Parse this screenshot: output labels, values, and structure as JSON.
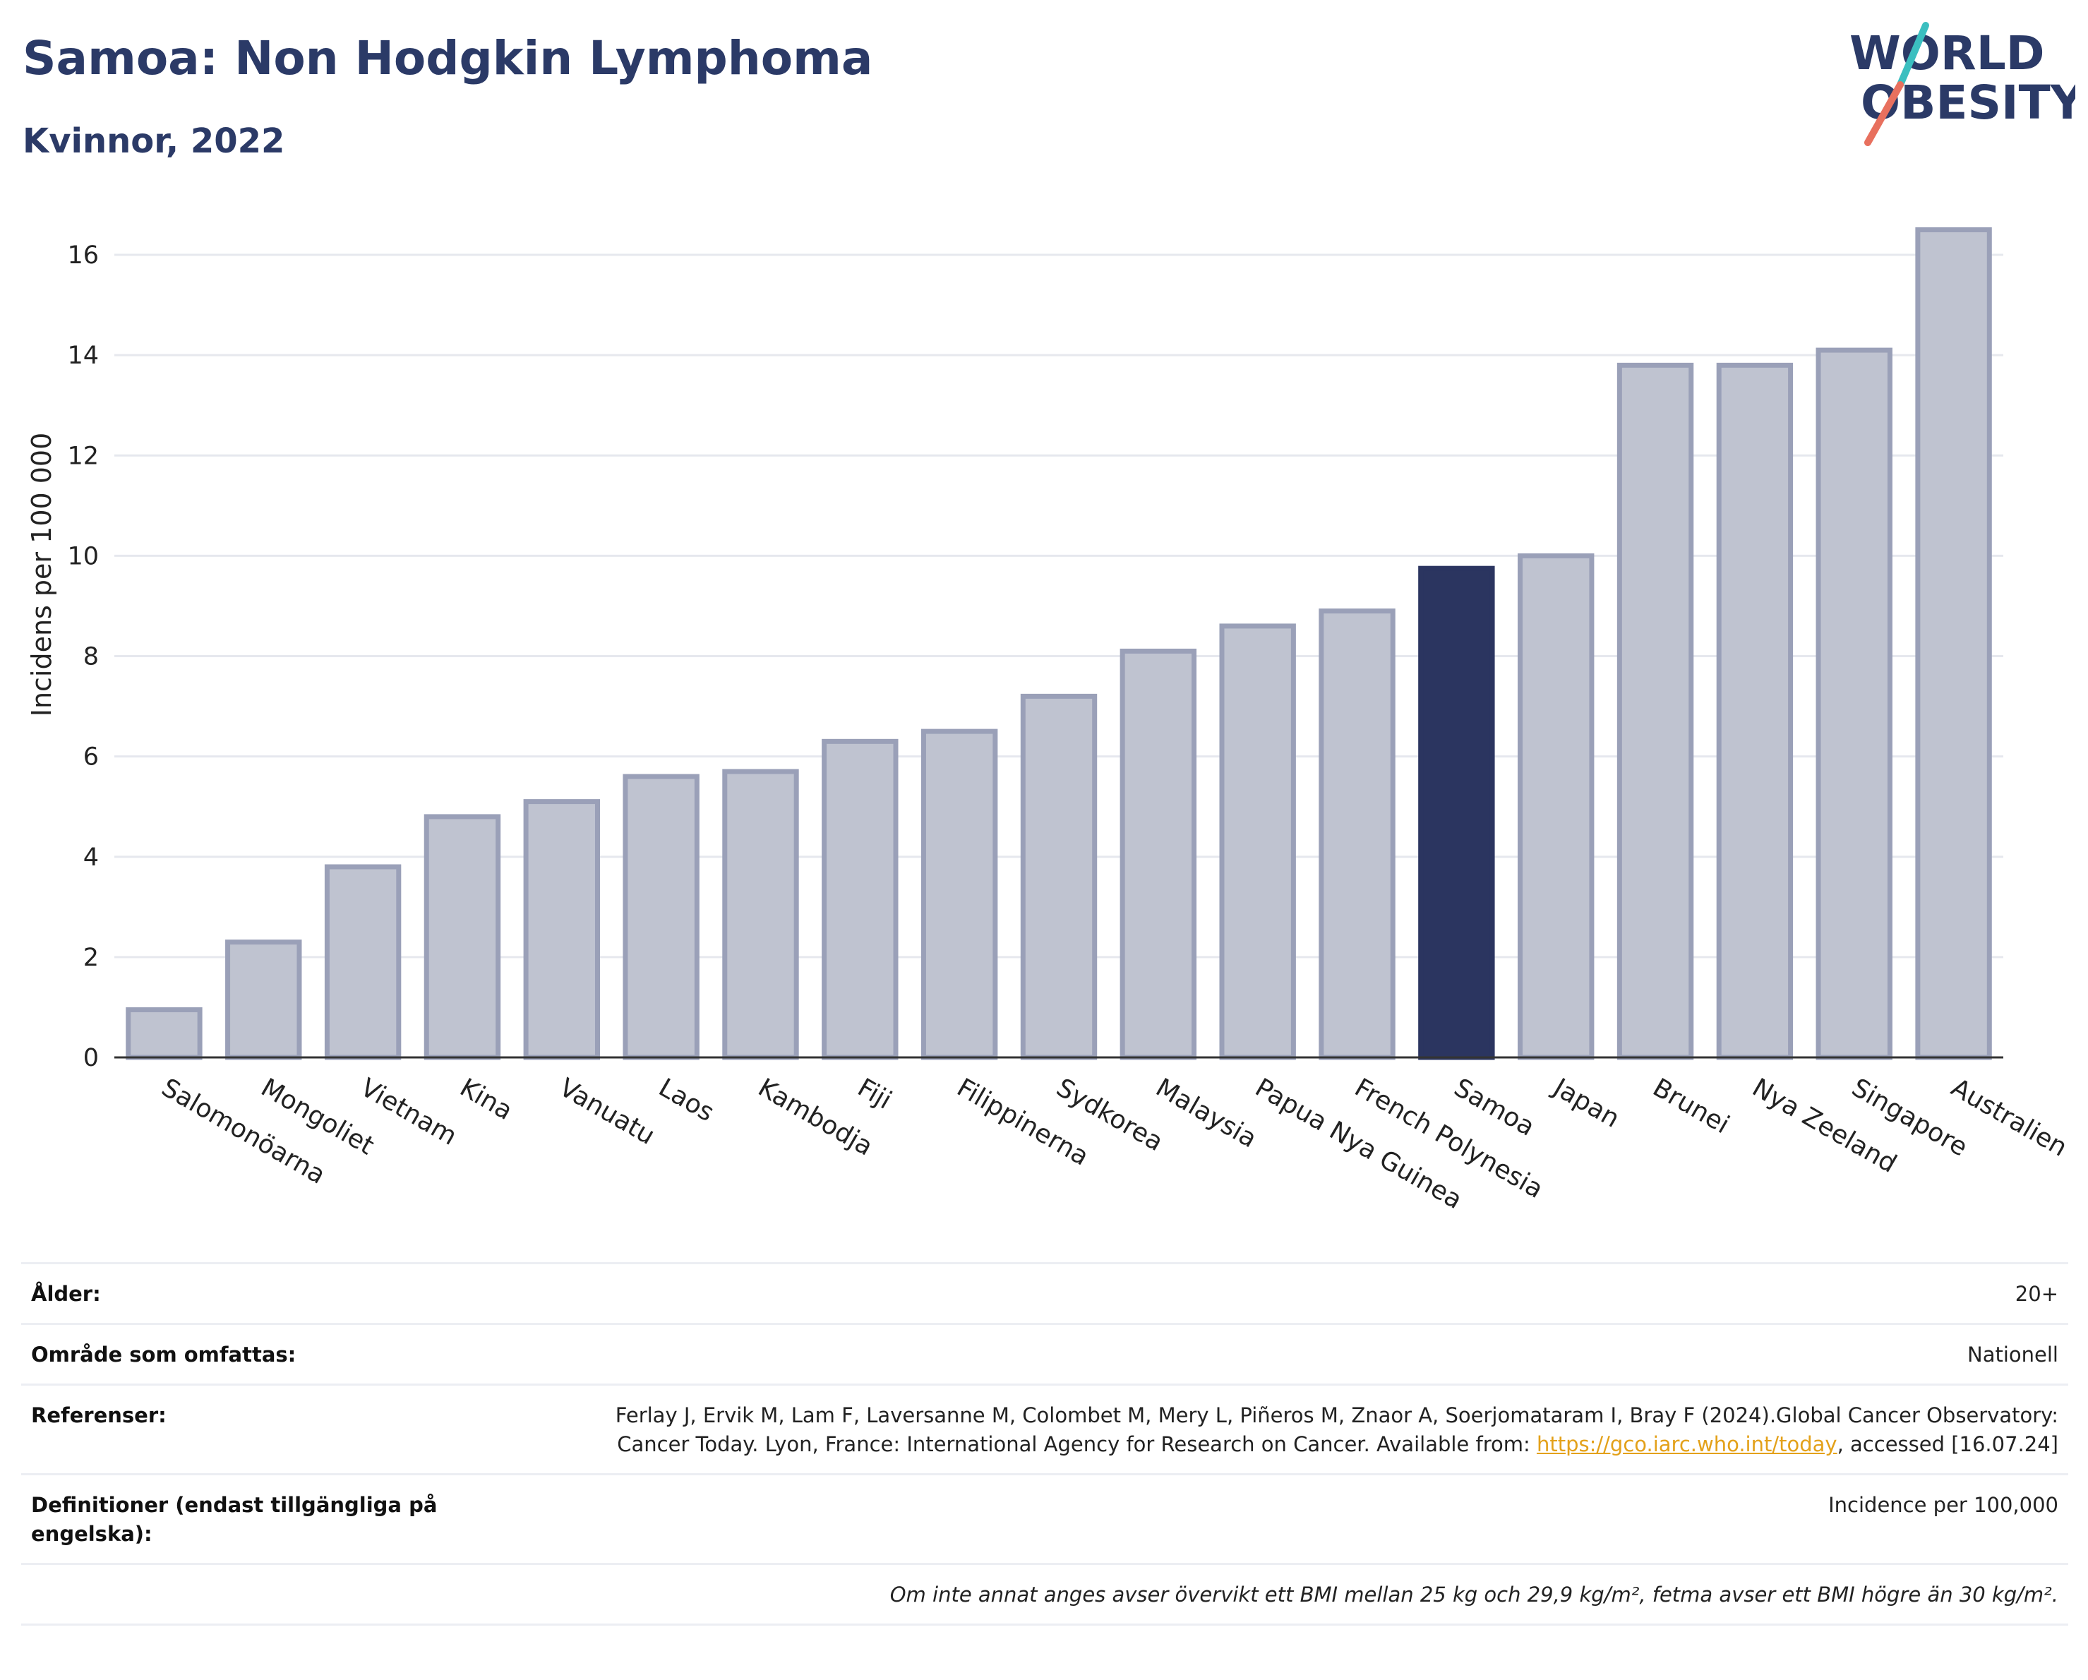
{
  "header": {
    "title": "Samoa: Non Hodgkin Lymphoma",
    "subtitle": "Kvinnor, 2022",
    "logo_line1": "WORLD",
    "logo_line2": "OBESITY"
  },
  "colors": {
    "title": "#2b3a67",
    "bar_highlight": "#2b3560",
    "bar_fill": "#bfc3d0",
    "bar_border": "#9aa0b8",
    "logo_teal": "#3bbfc0",
    "logo_coral": "#e8705e"
  },
  "chart_data": {
    "type": "bar",
    "categories": [
      "Salomonöarna",
      "Mongoliet",
      "Vietnam",
      "Kina",
      "Vanuatu",
      "Laos",
      "Kambodja",
      "Fiji",
      "Filippinerna",
      "Sydkorea",
      "Malaysia",
      "Papua Nya Guinea",
      "French Polynesia",
      "Samoa",
      "Japan",
      "Brunei",
      "Nya Zeeland",
      "Singapore",
      "Australien"
    ],
    "values": [
      0.95,
      2.3,
      3.8,
      4.8,
      5.1,
      5.6,
      5.7,
      6.3,
      6.5,
      7.2,
      8.1,
      8.6,
      8.9,
      9.75,
      10.0,
      13.8,
      13.8,
      14.1,
      16.5
    ],
    "highlight": "Samoa",
    "ylabel": "Incidens per 100 000",
    "xlabel": "",
    "ylim": [
      0,
      17
    ],
    "yticks": [
      0,
      2,
      4,
      6,
      8,
      10,
      12,
      14,
      16
    ],
    "grid": true
  },
  "info": {
    "rows": [
      {
        "key": "Ålder:",
        "value": "20+"
      },
      {
        "key": "Område som omfattas:",
        "value": "Nationell"
      }
    ],
    "references": {
      "key": "Referenser:",
      "text_before": "Ferlay J, Ervik M, Lam F, Laversanne M, Colombet M, Mery L, Piñeros M, Znaor A, Soerjomataram I, Bray F (2024).Global Cancer Observatory: Cancer Today. Lyon, France: International Agency for Research on Cancer. Available from: ",
      "link": "https://gco.iarc.who.int/today",
      "text_after": ", accessed [16.07.24]"
    },
    "definitions": {
      "key": "Definitioner (endast tillgängliga på engelska):",
      "value": "Incidence per 100,000"
    },
    "note": "Om inte annat anges avser övervikt ett BMI mellan 25 kg och 29,9 kg/m², fetma avser ett BMI högre än 30 kg/m²."
  }
}
